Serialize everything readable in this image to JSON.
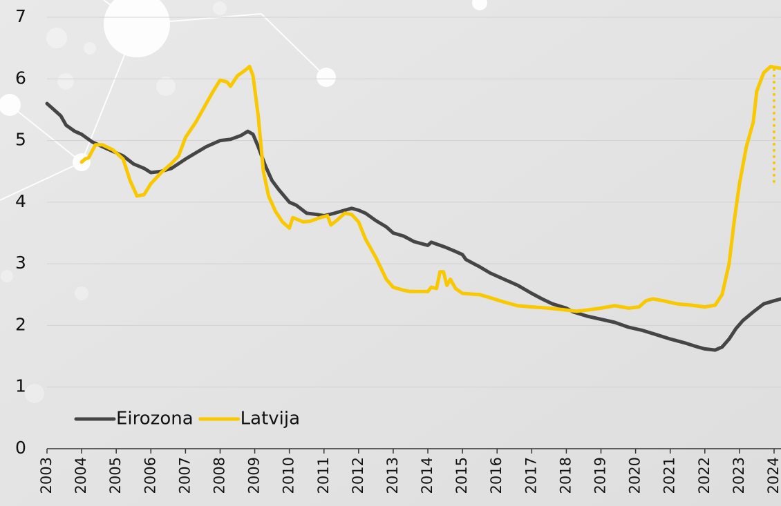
{
  "chart_data": {
    "type": "line",
    "xlim": [
      2003,
      2024.2
    ],
    "xticks": [
      2003,
      2004,
      2005,
      2006,
      2007,
      2008,
      2009,
      2010,
      2011,
      2012,
      2013,
      2014,
      2015,
      2016,
      2017,
      2018,
      2019,
      2020,
      2021,
      2022,
      2023,
      2024
    ],
    "ylim": [
      0,
      7
    ],
    "yticks": [
      0,
      1,
      2,
      3,
      4,
      5,
      6,
      7
    ],
    "grid": true,
    "legend": "lower left",
    "series": [
      {
        "name": "Eirozona",
        "color": "#454545",
        "x": [
          2003.0,
          2003.2,
          2003.4,
          2003.55,
          2003.8,
          2004.0,
          2004.3,
          2004.6,
          2005.0,
          2005.2,
          2005.5,
          2005.8,
          2006.0,
          2006.3,
          2006.6,
          2007.0,
          2007.3,
          2007.6,
          2008.0,
          2008.3,
          2008.6,
          2008.8,
          2008.95,
          2009.1,
          2009.3,
          2009.5,
          2009.7,
          2010.0,
          2010.2,
          2010.5,
          2010.8,
          2011.0,
          2011.3,
          2011.6,
          2011.8,
          2012.0,
          2012.2,
          2012.5,
          2012.8,
          2013.0,
          2013.3,
          2013.6,
          2014.0,
          2014.1,
          2014.5,
          2014.8,
          2015.0,
          2015.1,
          2015.5,
          2015.8,
          2016.0,
          2016.2,
          2016.6,
          2017.0,
          2017.3,
          2017.6,
          2018.0,
          2018.2,
          2018.6,
          2019.0,
          2019.4,
          2019.8,
          2020.2,
          2020.6,
          2021.0,
          2021.4,
          2021.8,
          2022.0,
          2022.3,
          2022.5,
          2022.7,
          2022.9,
          2023.1,
          2023.4,
          2023.7,
          2024.0,
          2024.2
        ],
        "values": [
          5.6,
          5.5,
          5.4,
          5.25,
          5.15,
          5.1,
          4.98,
          4.9,
          4.8,
          4.75,
          4.62,
          4.55,
          4.48,
          4.5,
          4.55,
          4.7,
          4.8,
          4.9,
          5.0,
          5.02,
          5.08,
          5.15,
          5.1,
          4.9,
          4.6,
          4.35,
          4.2,
          4.0,
          3.95,
          3.82,
          3.8,
          3.78,
          3.82,
          3.87,
          3.9,
          3.87,
          3.82,
          3.7,
          3.6,
          3.5,
          3.45,
          3.36,
          3.3,
          3.35,
          3.27,
          3.2,
          3.15,
          3.07,
          2.95,
          2.85,
          2.8,
          2.75,
          2.65,
          2.52,
          2.43,
          2.35,
          2.28,
          2.22,
          2.15,
          2.1,
          2.05,
          1.97,
          1.92,
          1.85,
          1.78,
          1.72,
          1.65,
          1.62,
          1.6,
          1.65,
          1.78,
          1.95,
          2.08,
          2.22,
          2.35,
          2.4,
          2.43
        ]
      },
      {
        "name": "Latvija",
        "color": "#f8c800",
        "x": [
          2004.0,
          2004.1,
          2004.2,
          2004.4,
          2004.6,
          2004.9,
          2005.2,
          2005.4,
          2005.6,
          2005.8,
          2006.0,
          2006.3,
          2006.6,
          2006.8,
          2007.0,
          2007.3,
          2007.6,
          2007.8,
          2008.0,
          2008.2,
          2008.3,
          2008.5,
          2008.7,
          2008.85,
          2008.95,
          2009.1,
          2009.25,
          2009.4,
          2009.6,
          2009.8,
          2010.0,
          2010.1,
          2010.4,
          2010.6,
          2010.9,
          2011.1,
          2011.2,
          2011.4,
          2011.6,
          2011.8,
          2012.0,
          2012.2,
          2012.5,
          2012.8,
          2013.0,
          2013.3,
          2013.5,
          2014.0,
          2014.1,
          2014.25,
          2014.35,
          2014.45,
          2014.55,
          2014.65,
          2014.8,
          2015.0,
          2015.5,
          2015.8,
          2016.2,
          2016.6,
          2017.0,
          2017.5,
          2018.0,
          2018.3,
          2018.6,
          2019.0,
          2019.4,
          2019.8,
          2020.1,
          2020.3,
          2020.5,
          2020.8,
          2021.2,
          2021.6,
          2022.0,
          2022.3,
          2022.5,
          2022.7,
          2022.85,
          2023.0,
          2023.2,
          2023.4,
          2023.5,
          2023.7,
          2023.9,
          2024.2
        ],
        "values": [
          4.65,
          4.7,
          4.72,
          4.93,
          4.93,
          4.85,
          4.7,
          4.35,
          4.1,
          4.12,
          4.3,
          4.48,
          4.63,
          4.75,
          5.05,
          5.3,
          5.6,
          5.8,
          5.98,
          5.95,
          5.88,
          6.05,
          6.13,
          6.2,
          6.05,
          5.4,
          4.5,
          4.1,
          3.85,
          3.68,
          3.58,
          3.75,
          3.68,
          3.69,
          3.75,
          3.78,
          3.63,
          3.72,
          3.82,
          3.8,
          3.68,
          3.4,
          3.1,
          2.75,
          2.62,
          2.57,
          2.55,
          2.55,
          2.62,
          2.6,
          2.87,
          2.87,
          2.65,
          2.75,
          2.6,
          2.52,
          2.5,
          2.45,
          2.38,
          2.32,
          2.3,
          2.28,
          2.25,
          2.23,
          2.25,
          2.28,
          2.32,
          2.28,
          2.3,
          2.4,
          2.43,
          2.4,
          2.35,
          2.33,
          2.3,
          2.33,
          2.5,
          3.0,
          3.7,
          4.3,
          4.9,
          5.3,
          5.8,
          6.1,
          6.2,
          6.17
        ]
      }
    ],
    "dotted_line": {
      "color": "#f8c800",
      "x": [
        2024.0,
        2024.0
      ],
      "values": [
        6.15,
        4.3
      ]
    }
  }
}
